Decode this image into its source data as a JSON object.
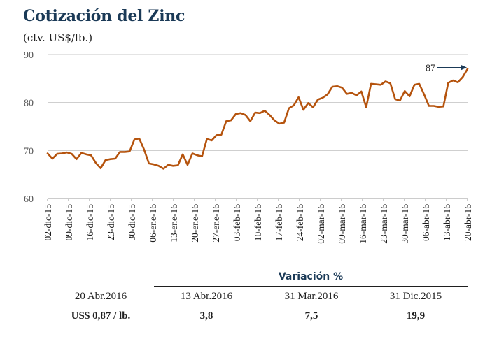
{
  "header": {
    "title": "Cotización del Zinc",
    "subtitle": "(ctv. US$/lb.)"
  },
  "chart_data": {
    "type": "line",
    "title": "Cotización del Zinc",
    "ylabel": "(ctv. US$/lb.)",
    "ylim": [
      60,
      90
    ],
    "yticks": [
      60,
      70,
      80,
      90
    ],
    "grid": "horizontal",
    "line_color": "#b5530d",
    "tick_labels": [
      "02-dic-15",
      "09-dic-15",
      "16-dic-15",
      "23-dic-15",
      "30-dic-15",
      "06-ene-16",
      "13-ene-16",
      "20-ene-16",
      "27-ene-16",
      "03-feb-16",
      "10-feb-16",
      "17-feb-16",
      "24-feb-16",
      "02-mar-16",
      "09-mar-16",
      "16-mar-16",
      "23-mar-16",
      "30-mar-16",
      "06-abr-16",
      "13-abr-16",
      "20-abr-16"
    ],
    "annotation": "87",
    "series": [
      {
        "values": [
          69.4,
          68.3,
          69.3,
          69.4,
          69.6,
          69.3,
          68.2,
          69.5,
          69.2,
          69.0,
          67.4,
          66.3,
          68.0,
          68.2,
          68.3,
          69.7,
          69.7,
          69.8,
          72.3,
          72.5,
          70.2,
          67.3,
          67.1,
          66.8,
          66.2,
          67.0,
          66.8,
          66.9,
          69.2,
          67.0,
          69.4,
          69.0,
          68.8,
          72.4,
          72.1,
          73.2,
          73.3,
          76.1,
          76.3,
          77.6,
          77.8,
          77.4,
          76.1,
          77.9,
          77.8,
          78.3,
          77.4,
          76.3,
          75.6,
          75.8,
          78.8,
          79.4,
          81.1,
          78.5,
          79.9,
          79.0,
          80.6,
          81.0,
          81.7,
          83.3,
          83.4,
          83.1,
          81.8,
          82.0,
          81.5,
          82.3,
          79.0,
          83.9,
          83.8,
          83.7,
          84.4,
          84.0,
          80.7,
          80.4,
          82.4,
          81.3,
          83.7,
          83.9,
          81.7,
          79.3,
          79.3,
          79.1,
          79.2,
          84.1,
          84.6,
          84.2,
          85.3,
          87.0
        ]
      }
    ]
  },
  "variation_table": {
    "heading": "Variación %",
    "reference_date": "20 Abr.2016",
    "price": "US$ 0,87 / lb.",
    "columns": [
      {
        "date": "13 Abr.2016",
        "value": "3,8"
      },
      {
        "date": "31 Mar.2016",
        "value": "7,5"
      },
      {
        "date": "31 Dic.2015",
        "value": "19,9"
      }
    ]
  }
}
